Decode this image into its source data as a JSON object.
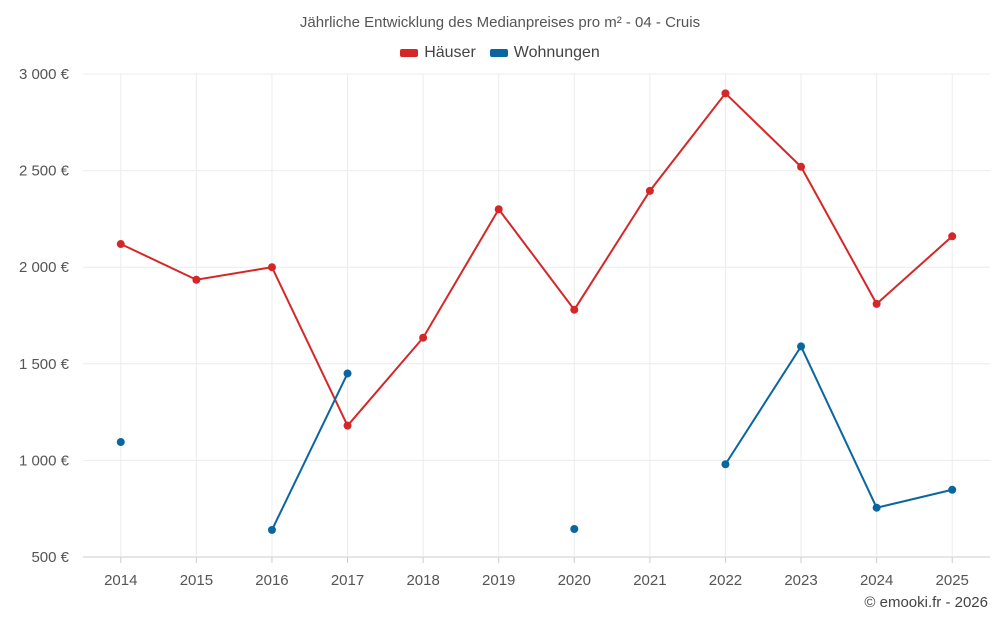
{
  "chart_data": {
    "type": "line",
    "title": "Jährliche Entwicklung des Medianpreises pro m² - 04 - Cruis",
    "categories": [
      "2014",
      "2015",
      "2016",
      "2017",
      "2018",
      "2019",
      "2020",
      "2021",
      "2022",
      "2023",
      "2024",
      "2025"
    ],
    "series": [
      {
        "name": "Häuser",
        "color": "#d62728",
        "values": [
          2120,
          1935,
          2000,
          1180,
          1635,
          2300,
          1780,
          2395,
          2900,
          2520,
          1810,
          2160
        ]
      },
      {
        "name": "Wohnungen",
        "color": "#0a66a0",
        "values": [
          1095,
          null,
          640,
          1450,
          null,
          null,
          645,
          null,
          980,
          1590,
          755,
          848
        ]
      }
    ],
    "ylim": [
      500,
      3000
    ],
    "yticks": [
      500,
      1000,
      1500,
      2000,
      2500,
      3000
    ],
    "ytick_labels": [
      "500 €",
      "1 000 €",
      "1 500 €",
      "2 000 €",
      "2 500 €",
      "3 000 €"
    ],
    "xlabel": "",
    "ylabel": "",
    "grid": true,
    "legend_position": "top-center"
  },
  "credit": "© emooki.fr - 2026"
}
